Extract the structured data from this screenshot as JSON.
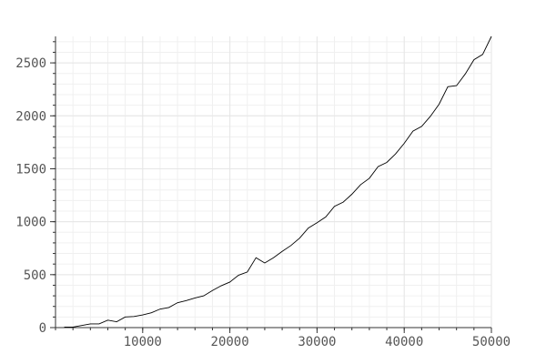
{
  "chart_data": {
    "type": "line",
    "title": "",
    "xlabel": "",
    "ylabel": "",
    "xlim": [
      0,
      50000
    ],
    "ylim": [
      0,
      2750
    ],
    "grid": true,
    "x_ticks": [
      10000,
      20000,
      30000,
      40000,
      50000
    ],
    "x_tick_labels": [
      "10000",
      "20000",
      "30000",
      "40000",
      "50000"
    ],
    "y_ticks": [
      0,
      500,
      1000,
      1500,
      2000,
      2500
    ],
    "y_tick_labels": [
      "0",
      "500",
      "1000",
      "1500",
      "2000",
      "2500"
    ],
    "series": [
      {
        "color": "#000000",
        "x": [
          1000,
          2000,
          3000,
          4000,
          5000,
          6000,
          7000,
          8000,
          9000,
          10000,
          11000,
          12000,
          13000,
          14000,
          15000,
          16000,
          17000,
          18000,
          19000,
          20000,
          21000,
          22000,
          23000,
          24000,
          25000,
          26000,
          27000,
          28000,
          29000,
          30000,
          31000,
          32000,
          33000,
          34000,
          35000,
          36000,
          37000,
          38000,
          39000,
          40000,
          41000,
          42000,
          43000,
          44000,
          45000,
          46000,
          47000,
          48000,
          49000,
          50000
        ],
        "y": [
          5,
          5,
          20,
          35,
          35,
          70,
          55,
          100,
          105,
          120,
          140,
          175,
          190,
          235,
          255,
          280,
          300,
          350,
          395,
          430,
          495,
          525,
          660,
          610,
          660,
          720,
          775,
          845,
          940,
          990,
          1045,
          1145,
          1185,
          1260,
          1350,
          1410,
          1520,
          1560,
          1640,
          1740,
          1855,
          1900,
          1995,
          2110,
          2275,
          2285,
          2395,
          2530,
          2580,
          2750
        ]
      }
    ]
  }
}
